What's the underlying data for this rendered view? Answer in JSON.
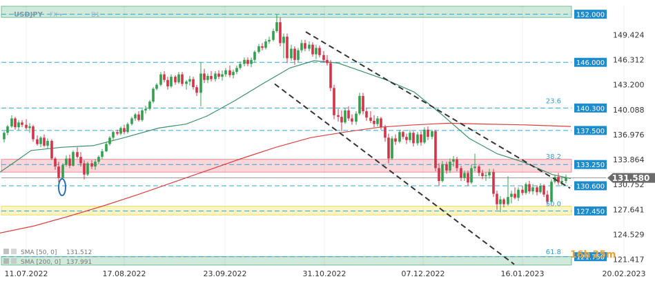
{
  "header": {
    "symbol": "USDJPY",
    "market": "FX",
    "interval": "D1"
  },
  "countdown": {
    "hours": "16h",
    "minutes": "25m"
  },
  "chart_data": {
    "type": "candlestick",
    "x_ticks": [
      "11.07.2022",
      "17.08.2022",
      "23.09.2022",
      "31.10.2022",
      "07.12.2022",
      "16.01.2023",
      "20.02.2023"
    ],
    "y_ticks": [
      "149.424",
      "146.312",
      "143.200",
      "140.088",
      "136.976",
      "133.864",
      "130.752",
      "127.641",
      "124.529",
      "121.417"
    ],
    "ylim": [
      120.6,
      153.0
    ],
    "last_price": "131.580",
    "levels": [
      {
        "label": "152.000",
        "value": 152.0,
        "type": "zone",
        "zone": [
          151.6,
          153.0
        ],
        "color": "#2a9d5c"
      },
      {
        "label": "146.000",
        "value": 146.0,
        "type": "line"
      },
      {
        "label": "140.300",
        "value": 140.3,
        "type": "line"
      },
      {
        "label": "137.500",
        "value": 137.5,
        "type": "line"
      },
      {
        "label": "133.250",
        "value": 133.25,
        "type": "zone",
        "zone": [
          132.3,
          133.9
        ],
        "color": "#e34b5c"
      },
      {
        "label": "130.600",
        "value": 130.6,
        "type": "line"
      },
      {
        "label": "127.450",
        "value": 127.45,
        "type": "zone",
        "zone": [
          126.95,
          128.05
        ],
        "color": "#e6cf00"
      },
      {
        "label": "121.750",
        "value": 121.75,
        "type": "zone",
        "zone": [
          120.7,
          121.75
        ],
        "color": "#2a9d5c"
      }
    ],
    "fib_labels": [
      {
        "label": "23.6",
        "value": 140.7
      },
      {
        "label": "38.2",
        "value": 133.8
      },
      {
        "label": "50.0",
        "value": 127.9
      },
      {
        "label": "61.8",
        "value": 121.9
      }
    ],
    "sma": [
      {
        "name": "SMA [50, 0]",
        "value_label": "131.512",
        "color": "#3a8f6a",
        "points": [
          [
            0,
            132.3
          ],
          [
            22,
            133.6
          ],
          [
            45,
            135.0
          ],
          [
            90,
            135.4
          ],
          [
            135,
            135.6
          ],
          [
            180,
            136.6
          ],
          [
            230,
            137.8
          ],
          [
            270,
            138.3
          ],
          [
            300,
            139.3
          ],
          [
            340,
            141.2
          ],
          [
            380,
            143.3
          ],
          [
            420,
            145.3
          ],
          [
            455,
            146.2
          ],
          [
            490,
            145.9
          ],
          [
            520,
            145.0
          ],
          [
            560,
            143.8
          ],
          [
            600,
            142.3
          ],
          [
            640,
            139.5
          ],
          [
            680,
            136.5
          ],
          [
            720,
            134.6
          ],
          [
            760,
            133.5
          ],
          [
            800,
            132.0
          ],
          [
            827,
            131.5
          ]
        ]
      },
      {
        "name": "SMA [200, 0]",
        "value_label": "137.991",
        "color": "#d94040",
        "points": [
          [
            0,
            124.7
          ],
          [
            50,
            125.6
          ],
          [
            100,
            126.8
          ],
          [
            150,
            128.1
          ],
          [
            200,
            129.5
          ],
          [
            250,
            131.0
          ],
          [
            300,
            132.5
          ],
          [
            350,
            134.0
          ],
          [
            400,
            135.4
          ],
          [
            450,
            136.6
          ],
          [
            500,
            137.3
          ],
          [
            550,
            137.9
          ],
          [
            600,
            138.2
          ],
          [
            650,
            138.4
          ],
          [
            700,
            138.3
          ],
          [
            760,
            138.2
          ],
          [
            827,
            138.0
          ]
        ]
      }
    ],
    "channel_lines": [
      [
        [
          443,
          149.8
        ],
        [
          826,
          130.3
        ]
      ],
      [
        [
          398,
          143.3
        ],
        [
          745,
          120.8
        ]
      ]
    ],
    "candles": [
      [
        6,
        136.4,
        137.4,
        136.0,
        137.2
      ],
      [
        11,
        137.2,
        138.2,
        136.9,
        138.0
      ],
      [
        17,
        138.0,
        139.4,
        137.8,
        139.0
      ],
      [
        22,
        139.0,
        139.2,
        137.6,
        137.9
      ],
      [
        27,
        137.9,
        138.8,
        137.5,
        138.5
      ],
      [
        32,
        138.5,
        138.8,
        137.9,
        138.2
      ],
      [
        38,
        138.2,
        138.9,
        137.6,
        137.8
      ],
      [
        43,
        137.8,
        138.4,
        137.2,
        138.0
      ],
      [
        48,
        138.0,
        138.2,
        136.1,
        136.4
      ],
      [
        54,
        136.4,
        136.9,
        135.6,
        135.8
      ],
      [
        59,
        135.8,
        136.8,
        135.4,
        136.6
      ],
      [
        64,
        136.6,
        137.0,
        135.4,
        135.6
      ],
      [
        69,
        135.6,
        136.5,
        135.2,
        136.2
      ],
      [
        75,
        136.2,
        136.4,
        133.8,
        134.0
      ],
      [
        80,
        134.0,
        134.2,
        132.6,
        133.0
      ],
      [
        85,
        133.0,
        133.6,
        131.0,
        131.6
      ],
      [
        91,
        131.6,
        133.4,
        131.4,
        133.2
      ],
      [
        96,
        133.2,
        134.4,
        133.0,
        134.0
      ],
      [
        101,
        134.0,
        134.5,
        132.8,
        133.1
      ],
      [
        106,
        133.1,
        135.0,
        133.0,
        134.8
      ],
      [
        112,
        134.8,
        135.4,
        134.0,
        134.2
      ],
      [
        117,
        134.2,
        134.8,
        133.0,
        133.4
      ],
      [
        122,
        133.4,
        133.8,
        131.4,
        132.0
      ],
      [
        127,
        132.0,
        133.6,
        131.8,
        133.4
      ],
      [
        133,
        133.4,
        133.8,
        132.7,
        133.0
      ],
      [
        138,
        133.0,
        133.9,
        132.6,
        133.6
      ],
      [
        143,
        133.6,
        134.4,
        133.3,
        134.2
      ],
      [
        148,
        134.2,
        135.2,
        133.9,
        134.9
      ],
      [
        154,
        134.9,
        136.1,
        134.8,
        135.8
      ],
      [
        159,
        135.8,
        136.8,
        135.6,
        136.6
      ],
      [
        164,
        136.6,
        137.5,
        136.3,
        137.3
      ],
      [
        170,
        137.3,
        137.6,
        136.9,
        137.1
      ],
      [
        175,
        137.1,
        138.0,
        136.9,
        137.8
      ],
      [
        180,
        137.8,
        138.2,
        137.0,
        137.3
      ],
      [
        185,
        137.3,
        138.5,
        137.1,
        138.3
      ],
      [
        191,
        138.3,
        139.2,
        138.1,
        139.0
      ],
      [
        196,
        139.0,
        139.7,
        138.7,
        139.5
      ],
      [
        201,
        139.5,
        139.9,
        138.6,
        138.8
      ],
      [
        206,
        138.8,
        140.2,
        138.6,
        140.0
      ],
      [
        211,
        140.0,
        140.6,
        139.6,
        140.2
      ],
      [
        217,
        140.2,
        141.3,
        140.0,
        141.1
      ],
      [
        222,
        141.1,
        142.9,
        140.9,
        142.7
      ],
      [
        227,
        142.7,
        143.4,
        142.5,
        143.2
      ],
      [
        233,
        143.2,
        144.8,
        143.0,
        144.5
      ],
      [
        238,
        144.5,
        144.9,
        143.5,
        143.8
      ],
      [
        243,
        143.8,
        144.2,
        142.6,
        143.0
      ],
      [
        248,
        143.0,
        144.5,
        142.8,
        144.2
      ],
      [
        254,
        144.2,
        144.4,
        143.2,
        143.5
      ],
      [
        259,
        143.5,
        144.8,
        143.3,
        144.5
      ],
      [
        264,
        144.5,
        144.8,
        143.0,
        143.3
      ],
      [
        270,
        143.3,
        143.8,
        142.6,
        143.6
      ],
      [
        275,
        143.6,
        144.3,
        143.1,
        143.9
      ],
      [
        280,
        143.9,
        144.2,
        142.6,
        142.9
      ],
      [
        285,
        142.9,
        143.2,
        141.8,
        142.2
      ],
      [
        291,
        142.2,
        146.0,
        140.5,
        144.6
      ],
      [
        296,
        144.6,
        145.2,
        143.4,
        143.8
      ],
      [
        301,
        143.8,
        144.6,
        143.4,
        144.3
      ],
      [
        306,
        144.3,
        144.9,
        143.6,
        143.9
      ],
      [
        312,
        143.9,
        144.9,
        143.6,
        144.6
      ],
      [
        317,
        144.6,
        145.0,
        143.9,
        144.2
      ],
      [
        322,
        144.2,
        145.0,
        143.7,
        144.5
      ],
      [
        327,
        144.5,
        145.3,
        144.2,
        145.0
      ],
      [
        333,
        145.0,
        145.6,
        144.1,
        144.4
      ],
      [
        338,
        144.4,
        145.1,
        144.0,
        144.8
      ],
      [
        343,
        144.8,
        145.6,
        144.5,
        145.3
      ],
      [
        348,
        145.3,
        146.1,
        145.1,
        145.8
      ],
      [
        354,
        145.8,
        146.6,
        145.5,
        146.3
      ],
      [
        359,
        146.3,
        146.6,
        145.5,
        145.8
      ],
      [
        364,
        145.8,
        146.6,
        145.4,
        146.3
      ],
      [
        369,
        146.3,
        147.5,
        146.0,
        147.3
      ],
      [
        375,
        147.3,
        148.3,
        147.1,
        148.0
      ],
      [
        380,
        148.0,
        148.4,
        147.5,
        147.8
      ],
      [
        385,
        147.8,
        148.9,
        147.6,
        148.6
      ],
      [
        390,
        148.6,
        149.2,
        148.3,
        148.8
      ],
      [
        396,
        148.8,
        150.2,
        148.6,
        149.9
      ],
      [
        401,
        149.9,
        152.0,
        149.7,
        151.0
      ],
      [
        406,
        151.0,
        151.6,
        148.0,
        148.4
      ],
      [
        411,
        148.4,
        149.6,
        146.5,
        149.2
      ],
      [
        416,
        149.2,
        149.6,
        145.9,
        146.5
      ],
      [
        422,
        146.5,
        148.2,
        146.2,
        147.7
      ],
      [
        427,
        147.7,
        148.0,
        145.7,
        146.3
      ],
      [
        432,
        146.3,
        147.8,
        146.0,
        147.5
      ],
      [
        437,
        147.5,
        148.8,
        147.2,
        148.4
      ],
      [
        442,
        148.4,
        148.8,
        147.4,
        147.7
      ],
      [
        448,
        147.7,
        148.6,
        147.4,
        148.2
      ],
      [
        453,
        148.2,
        148.5,
        146.7,
        147.0
      ],
      [
        458,
        147.0,
        148.2,
        146.4,
        147.8
      ],
      [
        463,
        147.8,
        148.1,
        146.6,
        146.9
      ],
      [
        469,
        146.9,
        147.4,
        146.0,
        146.3
      ],
      [
        474,
        146.3,
        146.9,
        145.6,
        145.9
      ],
      [
        479,
        145.9,
        146.3,
        142.4,
        142.8
      ],
      [
        484,
        142.8,
        143.2,
        138.9,
        139.4
      ],
      [
        490,
        139.4,
        140.2,
        138.6,
        139.2
      ],
      [
        495,
        139.2,
        140.0,
        137.4,
        138.5
      ],
      [
        500,
        138.5,
        140.3,
        138.3,
        140.0
      ],
      [
        505,
        140.0,
        140.5,
        138.7,
        139.0
      ],
      [
        510,
        139.0,
        139.5,
        138.2,
        138.6
      ],
      [
        516,
        138.6,
        139.9,
        138.2,
        139.6
      ],
      [
        521,
        139.6,
        142.2,
        139.4,
        141.8
      ],
      [
        526,
        141.8,
        142.2,
        139.5,
        139.9
      ],
      [
        531,
        139.9,
        140.3,
        138.7,
        139.1
      ],
      [
        537,
        139.1,
        139.9,
        138.4,
        138.7
      ],
      [
        542,
        138.7,
        139.4,
        137.9,
        138.3
      ],
      [
        547,
        138.3,
        139.3,
        138.0,
        139.0
      ],
      [
        552,
        139.0,
        139.2,
        137.6,
        137.9
      ],
      [
        558,
        137.9,
        138.2,
        136.1,
        136.6
      ],
      [
        563,
        136.6,
        137.1,
        133.4,
        134.0
      ],
      [
        568,
        134.0,
        136.8,
        133.8,
        136.5
      ],
      [
        573,
        136.5,
        137.0,
        135.7,
        136.1
      ],
      [
        579,
        136.1,
        137.6,
        135.9,
        137.3
      ],
      [
        584,
        137.3,
        137.5,
        136.4,
        136.7
      ],
      [
        589,
        136.7,
        137.1,
        135.8,
        136.3
      ],
      [
        594,
        136.3,
        137.6,
        136.0,
        137.2
      ],
      [
        599,
        137.2,
        137.4,
        135.5,
        135.9
      ],
      [
        605,
        135.9,
        137.3,
        135.6,
        137.0
      ],
      [
        610,
        137.0,
        137.4,
        135.6,
        136.0
      ],
      [
        615,
        136.0,
        137.9,
        135.8,
        137.6
      ],
      [
        620,
        137.6,
        138.0,
        136.3,
        136.7
      ],
      [
        626,
        136.7,
        137.6,
        136.4,
        137.4
      ],
      [
        631,
        137.4,
        137.6,
        132.4,
        132.8
      ],
      [
        636,
        132.8,
        133.4,
        130.6,
        131.2
      ],
      [
        641,
        131.2,
        133.7,
        131.0,
        133.3
      ],
      [
        647,
        133.3,
        133.6,
        132.1,
        132.5
      ],
      [
        652,
        132.5,
        134.0,
        132.2,
        133.6
      ],
      [
        657,
        133.6,
        134.3,
        133.0,
        133.9
      ],
      [
        662,
        133.9,
        134.2,
        132.4,
        132.8
      ],
      [
        668,
        132.8,
        133.1,
        131.2,
        131.6
      ],
      [
        673,
        131.6,
        132.5,
        131.2,
        132.2
      ],
      [
        678,
        132.2,
        132.5,
        130.6,
        131.0
      ],
      [
        683,
        131.0,
        133.3,
        130.8,
        132.8
      ],
      [
        688,
        132.8,
        134.6,
        132.4,
        133.0
      ],
      [
        694,
        133.0,
        133.3,
        131.8,
        132.2
      ],
      [
        699,
        132.2,
        132.6,
        131.4,
        131.8
      ],
      [
        704,
        131.8,
        132.3,
        131.2,
        131.9
      ],
      [
        709,
        131.9,
        132.7,
        131.5,
        132.3
      ],
      [
        715,
        132.3,
        132.7,
        129.2,
        129.6
      ],
      [
        720,
        129.6,
        130.0,
        127.6,
        128.3
      ],
      [
        725,
        128.3,
        129.3,
        127.3,
        128.9
      ],
      [
        730,
        128.9,
        129.1,
        127.9,
        128.3
      ],
      [
        736,
        128.3,
        131.8,
        128.1,
        129.2
      ],
      [
        741,
        129.2,
        130.0,
        128.4,
        129.6
      ],
      [
        746,
        129.6,
        130.4,
        128.9,
        129.1
      ],
      [
        751,
        129.1,
        130.4,
        128.7,
        130.1
      ],
      [
        757,
        130.1,
        130.6,
        129.4,
        129.7
      ],
      [
        762,
        129.7,
        131.0,
        129.5,
        130.8
      ],
      [
        767,
        130.8,
        131.2,
        129.6,
        129.9
      ],
      [
        772,
        129.9,
        130.8,
        129.5,
        130.4
      ],
      [
        778,
        130.4,
        130.6,
        129.4,
        129.8
      ],
      [
        783,
        129.8,
        130.9,
        129.6,
        130.6
      ],
      [
        788,
        130.6,
        130.8,
        129.2,
        129.5
      ],
      [
        793,
        129.5,
        130.0,
        128.2,
        128.6
      ],
      [
        799,
        128.6,
        131.4,
        128.4,
        131.1
      ],
      [
        804,
        131.1,
        132.0,
        130.9,
        131.7
      ],
      [
        809,
        131.7,
        132.2,
        130.7,
        131.0
      ],
      [
        814,
        131.0,
        131.8,
        130.6,
        131.2
      ],
      [
        820,
        131.2,
        132.0,
        130.9,
        131.58
      ]
    ]
  },
  "colors": {
    "bull": "#33a04d",
    "bear": "#d23448",
    "level_line": "#29a7d6",
    "level_badge": "#1d8ccc",
    "price_badge": "#6b6b6b",
    "countdown_hours": "#e8a13a",
    "countdown_minutes": "#e8a13a",
    "ellipse": "#2a6fb3"
  }
}
